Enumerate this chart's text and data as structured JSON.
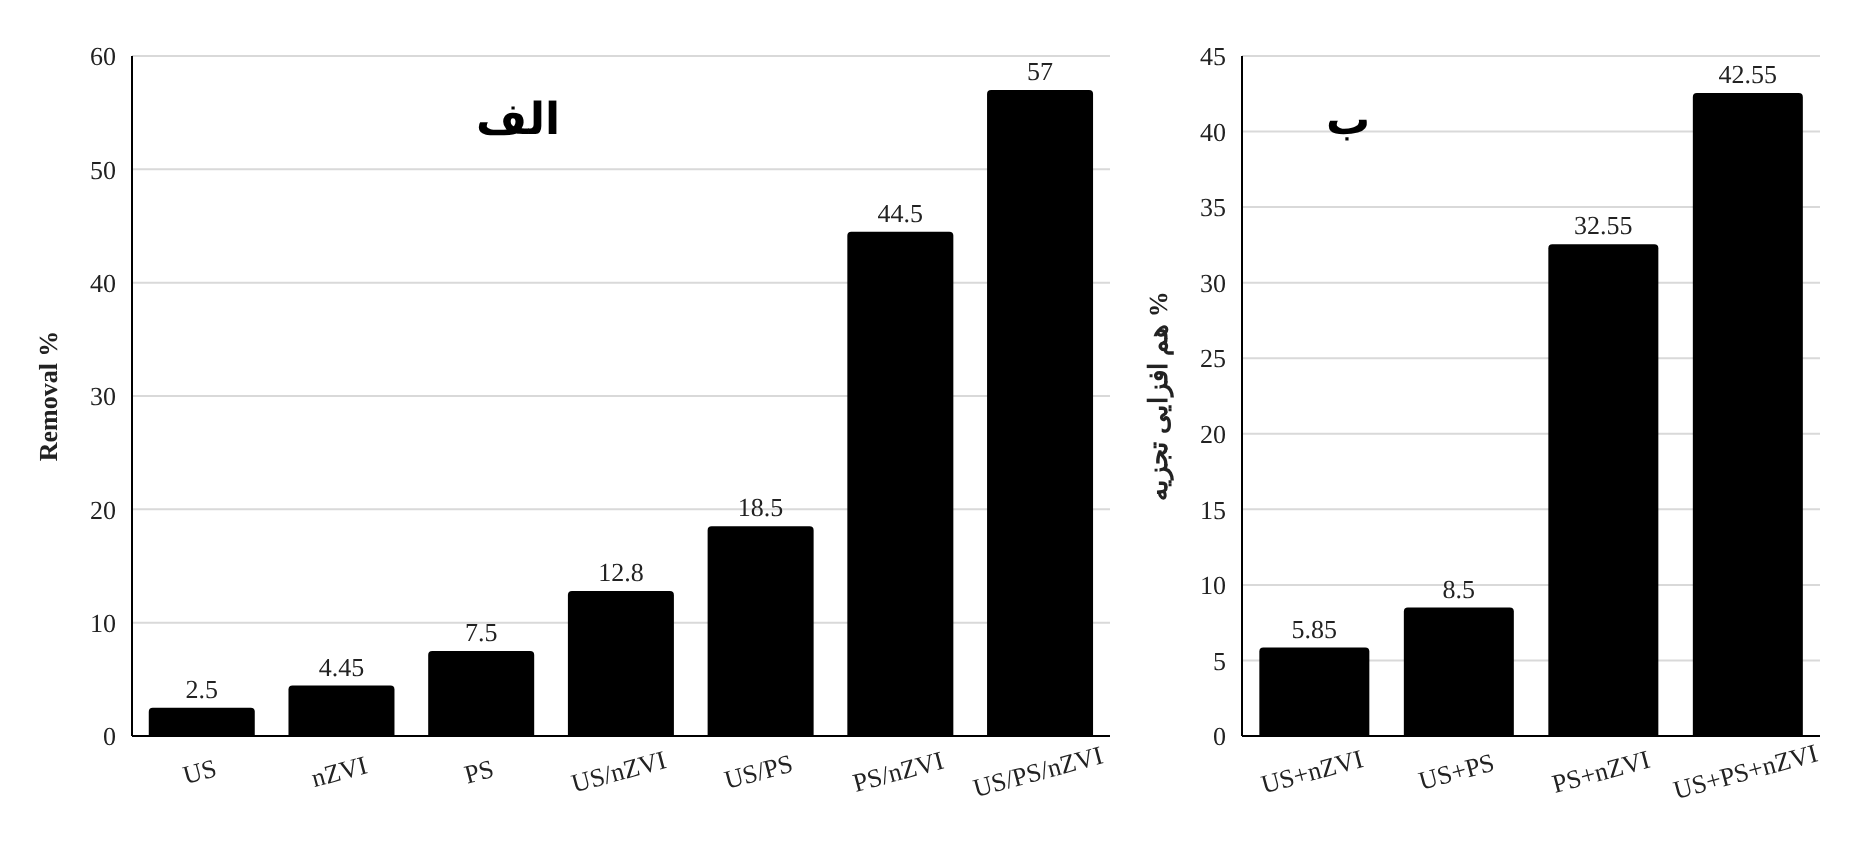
{
  "chart_data": [
    {
      "type": "bar",
      "title": "الف",
      "ylabel": "Removal %",
      "categories": [
        "US",
        "nZVI",
        "PS",
        "US/nZVI",
        "US/PS",
        "PS/nZVI",
        "US/PS/nZVI"
      ],
      "values": [
        2.5,
        4.45,
        7.5,
        12.8,
        18.5,
        44.5,
        57
      ],
      "color": "#000000",
      "ylim": [
        0,
        60
      ],
      "yticks": [
        0,
        10,
        20,
        30,
        40,
        50,
        60
      ],
      "grid": "y",
      "data_labels": true
    },
    {
      "type": "bar",
      "title": "ب",
      "ylabel": "هم افزایی تجزیه %",
      "categories": [
        "US+nZVI",
        "US+PS",
        "PS+nZVI",
        "US+PS+nZVI"
      ],
      "values": [
        5.85,
        8.5,
        32.55,
        42.55
      ],
      "color": "#000000",
      "ylim": [
        0,
        45
      ],
      "yticks": [
        0,
        5,
        10,
        15,
        20,
        25,
        30,
        35,
        40,
        45
      ],
      "grid": "y",
      "data_labels": true
    }
  ]
}
